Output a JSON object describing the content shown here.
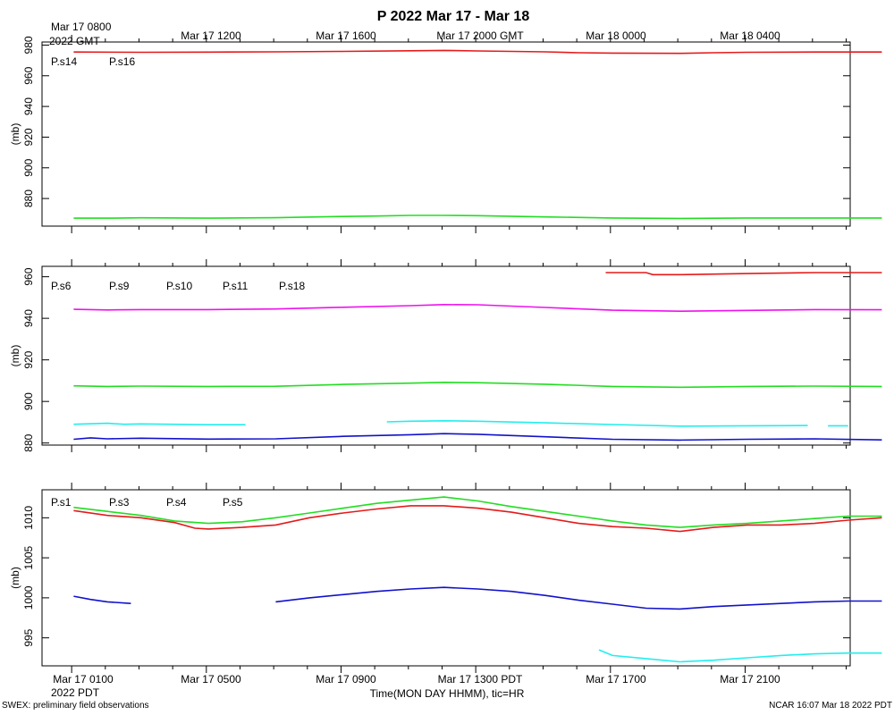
{
  "title": "P 2022 Mar 17 - Mar 18",
  "top_axis": {
    "first_label": "Mar 17 0800",
    "first_sub": "2022 GMT",
    "labels": [
      "Mar 17 1200",
      "Mar 17 1600",
      "Mar 17 2000 GMT",
      "Mar 18 0000",
      "Mar 18 0400"
    ]
  },
  "bottom_axis": {
    "labels": [
      "Mar 17 0100",
      "Mar 17 0500",
      "Mar 17 0900",
      "Mar 17 1300 PDT",
      "Mar 17 1700",
      "Mar 17 2100"
    ],
    "sub_label": "2022 PDT",
    "xlabel": "Time(MON DAY HHMM), tic=HR"
  },
  "footer": {
    "left": "SWEX: preliminary field observations",
    "right": "NCAR 16:07 Mar 18 2022 PDT"
  },
  "colors": {
    "red": "#e41a1a",
    "green": "#22dd22",
    "blue": "#1111cc",
    "cyan": "#22eeee",
    "magenta": "#ee11ee"
  },
  "chart_data": [
    {
      "type": "line",
      "ylabel": "(mb)",
      "ylim": [
        862,
        982
      ],
      "yticks": [
        880,
        900,
        920,
        940,
        960,
        980
      ],
      "xlim_hours": [
        0,
        24
      ],
      "series": [
        {
          "name": "P.s14",
          "color": "red",
          "x": [
            0,
            2,
            4,
            6,
            8,
            10,
            11,
            12,
            14,
            15,
            16,
            18,
            19,
            20,
            22,
            24
          ],
          "y": [
            975.5,
            975.3,
            975.4,
            975.6,
            975.9,
            976.3,
            976.5,
            976.2,
            975.6,
            975.0,
            974.8,
            974.6,
            975.0,
            975.3,
            975.5,
            975.5
          ]
        },
        {
          "name": "P.s16",
          "color": "green",
          "x": [
            0,
            1,
            2,
            4,
            6,
            8,
            9,
            10,
            11,
            12,
            14,
            16,
            18,
            20,
            22,
            24
          ],
          "y": [
            867.2,
            867.2,
            867.4,
            867.2,
            867.5,
            868.3,
            868.6,
            869.0,
            869.0,
            868.8,
            868.0,
            867.3,
            867.0,
            867.3,
            867.3,
            867.3
          ]
        }
      ]
    },
    {
      "type": "line",
      "ylabel": "(mb)",
      "ylim": [
        879,
        965
      ],
      "yticks": [
        880,
        900,
        920,
        940,
        960
      ],
      "xlim_hours": [
        0,
        24
      ],
      "series": [
        {
          "name": "P.s6",
          "color": "red",
          "x": [
            15.8,
            17,
            17.2,
            18,
            20,
            22,
            24
          ],
          "y": [
            962.0,
            962.0,
            961.0,
            961.0,
            961.5,
            962.0,
            962.0
          ]
        },
        {
          "name": "P.s9",
          "color": "green",
          "x": [
            0,
            1,
            2,
            4,
            6,
            8,
            10,
            11,
            12,
            14,
            16,
            18,
            20,
            22,
            24
          ],
          "y": [
            907.5,
            907.2,
            907.4,
            907.2,
            907.3,
            908.2,
            908.8,
            909.2,
            909.0,
            908.3,
            907.2,
            906.8,
            907.2,
            907.4,
            907.2
          ]
        },
        {
          "name": "P.s10",
          "color": "blue",
          "x": [
            0,
            0.5,
            1,
            2,
            4,
            6,
            8,
            10,
            11,
            12,
            14,
            16,
            18,
            20,
            22,
            24
          ],
          "y": [
            881.8,
            882.5,
            882.0,
            882.3,
            881.9,
            882.0,
            883.2,
            884.0,
            884.5,
            884.2,
            883.0,
            881.8,
            881.4,
            881.8,
            882.0,
            881.5
          ]
        },
        {
          "name": "P.s11",
          "color": "cyan",
          "x": [
            0,
            1,
            1.5,
            2,
            4,
            5.1
          ],
          "y": [
            889.0,
            889.5,
            889.0,
            889.2,
            888.8,
            888.8
          ]
        },
        {
          "name": "P.s11",
          "color": "cyan",
          "x": [
            9.3,
            10,
            11,
            12,
            14,
            16,
            18,
            20,
            21.8
          ],
          "y": [
            890.2,
            890.5,
            890.7,
            890.5,
            889.7,
            888.9,
            888.1,
            888.3,
            888.4
          ]
        },
        {
          "name": "P.s11",
          "color": "cyan",
          "x": [
            22.4,
            23.0
          ],
          "y": [
            888.3,
            888.3
          ]
        },
        {
          "name": "P.s18",
          "color": "magenta",
          "x": [
            0,
            1,
            2,
            4,
            6,
            8,
            10,
            11,
            12,
            14,
            16,
            18,
            20,
            22,
            24
          ],
          "y": [
            944.3,
            944.0,
            944.2,
            944.2,
            944.5,
            945.3,
            946.1,
            946.6,
            946.5,
            945.2,
            943.9,
            943.4,
            943.8,
            944.2,
            944.1
          ]
        }
      ]
    },
    {
      "type": "line",
      "ylabel": "(mb)",
      "ylim": [
        991.5,
        1013.5
      ],
      "yticks": [
        995,
        1000,
        1005,
        1010
      ],
      "xlim_hours": [
        0,
        24
      ],
      "series": [
        {
          "name": "P.s1",
          "color": "red",
          "x": [
            0,
            1,
            2,
            3,
            3.6,
            4,
            5,
            6,
            7,
            8,
            9,
            10,
            11,
            12,
            13,
            14,
            15,
            16,
            17,
            18,
            19,
            20,
            21,
            22,
            23,
            24
          ],
          "y": [
            1010.9,
            1010.3,
            1010.0,
            1009.4,
            1008.7,
            1008.6,
            1008.8,
            1009.1,
            1010.0,
            1010.6,
            1011.1,
            1011.5,
            1011.5,
            1011.2,
            1010.7,
            1010.0,
            1009.3,
            1008.9,
            1008.7,
            1008.3,
            1008.8,
            1009.1,
            1009.1,
            1009.3,
            1009.7,
            1010.0
          ]
        },
        {
          "name": "P.s3",
          "color": "green",
          "x": [
            0,
            1,
            2,
            3,
            4,
            5,
            6,
            7,
            8,
            9,
            10,
            11,
            12,
            13,
            14,
            15,
            16,
            17,
            18,
            19,
            20,
            21,
            22,
            23,
            24
          ],
          "y": [
            1011.3,
            1010.8,
            1010.3,
            1009.6,
            1009.3,
            1009.5,
            1010.0,
            1010.6,
            1011.2,
            1011.8,
            1012.2,
            1012.6,
            1012.1,
            1011.4,
            1010.8,
            1010.2,
            1009.6,
            1009.1,
            1008.8,
            1009.1,
            1009.3,
            1009.6,
            1009.9,
            1010.2,
            1010.2
          ]
        },
        {
          "name": "P.s4",
          "color": "blue",
          "x": [
            0,
            0.5,
            1,
            1.7
          ],
          "y": [
            1000.2,
            999.8,
            999.5,
            999.3
          ]
        },
        {
          "name": "P.s4",
          "color": "blue",
          "x": [
            6,
            7,
            8,
            9,
            10,
            11,
            12,
            13,
            14,
            15,
            16,
            17,
            18,
            19,
            20,
            21,
            22,
            23,
            24
          ],
          "y": [
            999.5,
            1000.0,
            1000.4,
            1000.8,
            1001.1,
            1001.3,
            1001.1,
            1000.8,
            1000.3,
            999.7,
            999.2,
            998.7,
            998.6,
            998.9,
            999.1,
            999.3,
            999.5,
            999.6,
            999.6
          ]
        },
        {
          "name": "P.s5",
          "color": "cyan",
          "x": [
            15.6,
            16,
            17,
            18,
            19,
            20,
            21,
            22,
            23,
            24
          ],
          "y": [
            993.5,
            992.8,
            992.4,
            992.0,
            992.2,
            992.5,
            992.8,
            993.0,
            993.1,
            993.1
          ]
        }
      ]
    }
  ]
}
